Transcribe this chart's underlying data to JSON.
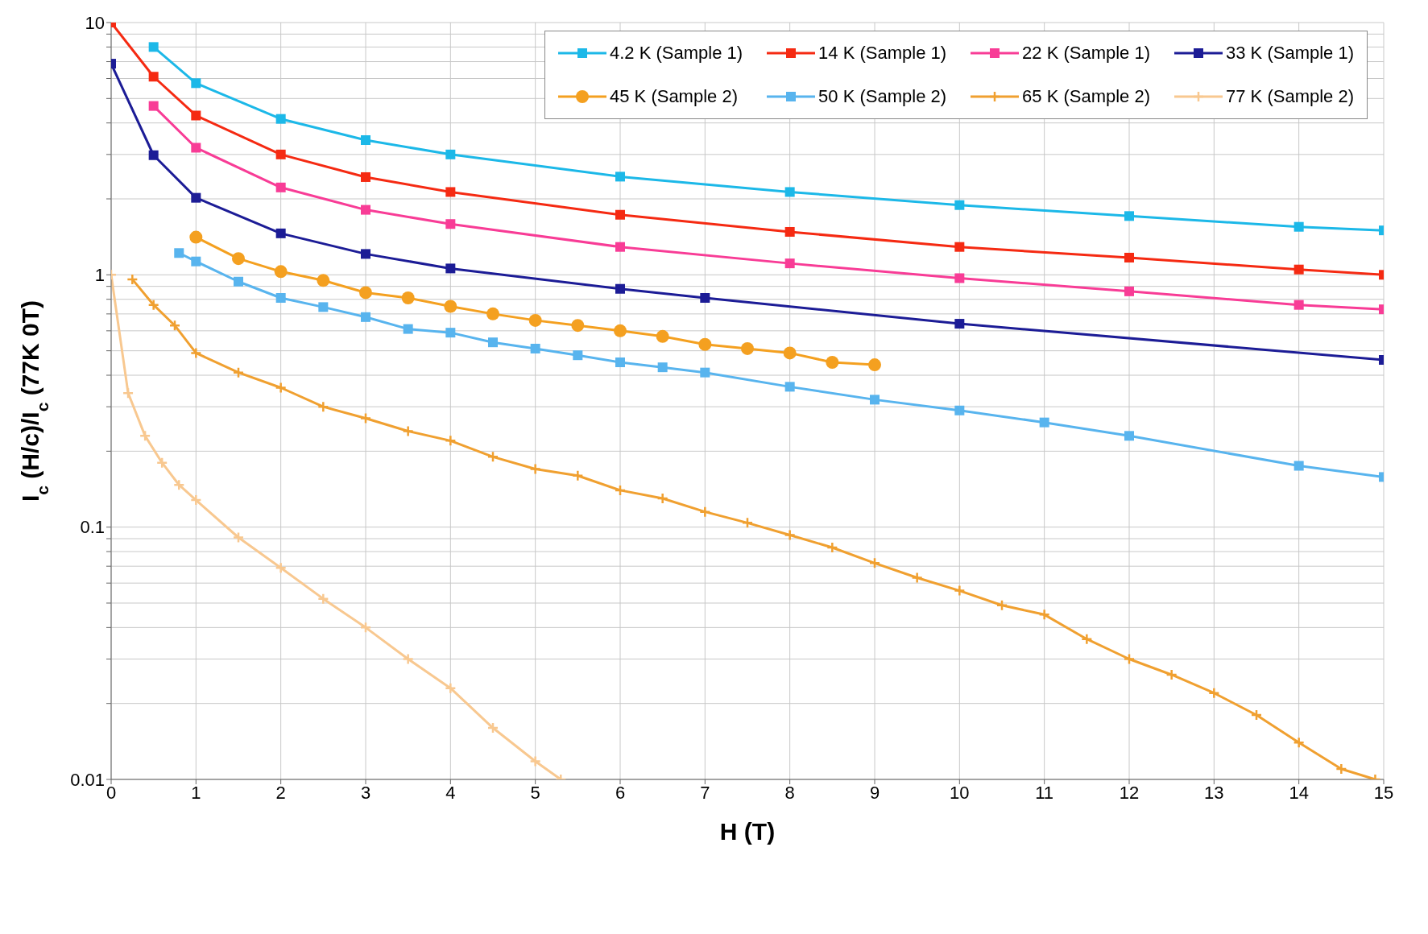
{
  "chart_data": {
    "type": "line",
    "xlabel": "H (T)",
    "ylabel": "I$_{c}$ (H/c)/I$_{c}$ (77K 0T)",
    "log": "y",
    "grid": true,
    "legend": "top right",
    "line_style": "solid",
    "xlim": [
      0,
      15
    ],
    "xticks": [
      0,
      1,
      2,
      3,
      4,
      5,
      6,
      7,
      8,
      9,
      10,
      11,
      12,
      13,
      14,
      15
    ],
    "ylim": [
      0.01,
      10
    ],
    "yticks": [
      {
        "value": 0.01,
        "label": "0.01"
      },
      {
        "value": 0.02,
        "label": null
      },
      {
        "value": 0.03,
        "label": null
      },
      {
        "value": 0.04,
        "label": null
      },
      {
        "value": 0.05,
        "label": null
      },
      {
        "value": 0.06,
        "label": null
      },
      {
        "value": 0.07,
        "label": null
      },
      {
        "value": 0.08,
        "label": null
      },
      {
        "value": 0.09,
        "label": null
      },
      {
        "value": 0.1,
        "label": "0.1"
      },
      {
        "value": 0.2,
        "label": null
      },
      {
        "value": 0.3,
        "label": null
      },
      {
        "value": 0.4,
        "label": null
      },
      {
        "value": 0.5,
        "label": null
      },
      {
        "value": 0.6,
        "label": null
      },
      {
        "value": 0.7,
        "label": null
      },
      {
        "value": 0.8,
        "label": null
      },
      {
        "value": 0.9,
        "label": null
      },
      {
        "value": 1,
        "label": "1"
      },
      {
        "value": 2,
        "label": null
      },
      {
        "value": 3,
        "label": null
      },
      {
        "value": 4,
        "label": null
      },
      {
        "value": 5,
        "label": null
      },
      {
        "value": 6,
        "label": null
      },
      {
        "value": 7,
        "label": null
      },
      {
        "value": 8,
        "label": null
      },
      {
        "value": 9,
        "label": null
      },
      {
        "value": 10,
        "label": "10"
      }
    ],
    "series": [
      {
        "name": "4.2 K (Sample 1)",
        "color": "#1cb8e8",
        "marker": "square",
        "x": [
          0.5,
          1,
          2,
          3,
          4,
          6,
          8,
          10,
          12,
          14,
          15
        ],
        "values": [
          8.0,
          5.75,
          4.15,
          3.42,
          3.0,
          2.45,
          2.13,
          1.89,
          1.71,
          1.55,
          1.5
        ]
      },
      {
        "name": "14 K (Sample 1)",
        "color": "#f52a12",
        "marker": "square",
        "x": [
          0,
          0.5,
          1,
          2,
          3,
          4,
          6,
          8,
          10,
          12,
          14,
          15
        ],
        "values": [
          10,
          6.1,
          4.28,
          3.0,
          2.44,
          2.13,
          1.73,
          1.48,
          1.29,
          1.17,
          1.05,
          1.0
        ]
      },
      {
        "name": "22 K (Sample 1)",
        "color": "#f83c96",
        "marker": "square",
        "x": [
          0.5,
          1,
          2,
          3,
          4,
          6,
          8,
          10,
          12,
          14,
          15
        ],
        "values": [
          4.67,
          3.19,
          2.22,
          1.81,
          1.59,
          1.29,
          1.11,
          0.97,
          0.86,
          0.76,
          0.73
        ]
      },
      {
        "name": "33 K (Sample 1)",
        "color": "#1c1c96",
        "marker": "square",
        "x": [
          0,
          0.5,
          1,
          2,
          3,
          4,
          6,
          7,
          10,
          15
        ],
        "values": [
          6.87,
          2.98,
          2.02,
          1.46,
          1.21,
          1.06,
          0.88,
          0.81,
          0.64,
          0.46
        ]
      },
      {
        "name": "45 K (Sample 2)",
        "color": "#f4a020",
        "marker": "circle",
        "x": [
          1,
          1.5,
          2,
          2.5,
          3,
          3.5,
          4,
          4.5,
          5,
          5.5,
          6,
          6.5,
          7,
          7.5,
          8,
          8.5,
          9
        ],
        "values": [
          1.41,
          1.16,
          1.03,
          0.95,
          0.85,
          0.81,
          0.75,
          0.7,
          0.66,
          0.63,
          0.6,
          0.57,
          0.53,
          0.51,
          0.49,
          0.45,
          0.44
        ]
      },
      {
        "name": "50 K (Sample 2)",
        "color": "#58b4ee",
        "marker": "square",
        "x": [
          0.8,
          1,
          1.5,
          2,
          2.5,
          3,
          3.5,
          4,
          4.5,
          5,
          5.5,
          6,
          6.5,
          7,
          8,
          9,
          10,
          11,
          12,
          14,
          15
        ],
        "values": [
          1.22,
          1.13,
          0.94,
          0.81,
          0.745,
          0.68,
          0.61,
          0.59,
          0.54,
          0.51,
          0.48,
          0.45,
          0.43,
          0.41,
          0.36,
          0.32,
          0.29,
          0.26,
          0.23,
          0.175,
          0.158
        ]
      },
      {
        "name": "65 K (Sample 2)",
        "color": "#f0a030",
        "marker": "cross",
        "x": [
          0.25,
          0.5,
          0.75,
          1,
          1.5,
          2,
          2.5,
          3,
          3.5,
          4,
          4.5,
          5,
          5.5,
          6,
          6.5,
          7,
          7.5,
          8,
          8.5,
          9,
          9.5,
          10,
          10.5,
          11,
          11.5,
          12,
          12.5,
          13,
          13.5,
          14,
          14.5,
          14.9
        ],
        "values": [
          0.96,
          0.76,
          0.63,
          0.49,
          0.41,
          0.357,
          0.3,
          0.27,
          0.24,
          0.22,
          0.19,
          0.17,
          0.16,
          0.14,
          0.13,
          0.115,
          0.104,
          0.093,
          0.083,
          0.072,
          0.063,
          0.056,
          0.049,
          0.045,
          0.036,
          0.03,
          0.026,
          0.022,
          0.018,
          0.014,
          0.011,
          0.01
        ]
      },
      {
        "name": "77 K (Sample 2)",
        "color": "#f8c890",
        "marker": "cross",
        "x": [
          0,
          0.2,
          0.4,
          0.6,
          0.8,
          1,
          1.5,
          2,
          2.5,
          3,
          3.5,
          4,
          4.5,
          5,
          5.3
        ],
        "values": [
          1,
          0.34,
          0.23,
          0.18,
          0.147,
          0.128,
          0.091,
          0.069,
          0.052,
          0.04,
          0.03,
          0.023,
          0.016,
          0.0118,
          0.01
        ]
      }
    ]
  }
}
